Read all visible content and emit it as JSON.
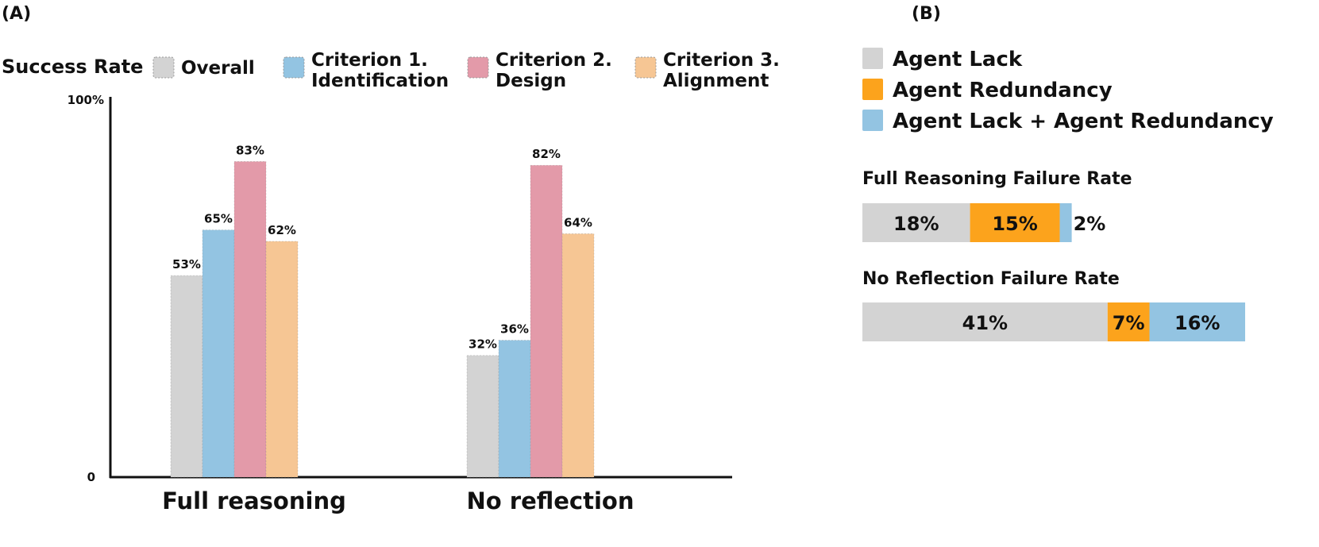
{
  "panel_a": {
    "label": "(A)",
    "legend_title": "Success Rate",
    "legend": [
      {
        "lines": [
          "Overall"
        ],
        "color": "#d3d3d3"
      },
      {
        "lines": [
          "Criterion 1.",
          "Identification"
        ],
        "color": "#93c4e2"
      },
      {
        "lines": [
          "Criterion 2.",
          "Design"
        ],
        "color": "#e39aa9"
      },
      {
        "lines": [
          "Criterion 3.",
          "Alignment"
        ],
        "color": "#f6c694"
      }
    ]
  },
  "panel_b": {
    "label": "(B)",
    "legend": [
      {
        "label": "Agent Lack",
        "color": "#d3d3d3"
      },
      {
        "label": "Agent Redundancy",
        "color": "#fca31c"
      },
      {
        "label": "Agent Lack + Agent Redundancy",
        "color": "#93c4e2"
      }
    ]
  },
  "chart_data": [
    {
      "type": "bar",
      "categories": [
        "Full reasoning",
        "No reflection"
      ],
      "ytick_labels": [
        "0",
        "100%"
      ],
      "ylim": [
        0,
        100
      ],
      "series": [
        {
          "name": "Overall",
          "values": [
            53,
            32
          ],
          "labels": [
            "53%",
            "32%"
          ],
          "color": "#d3d3d3"
        },
        {
          "name": "Criterion 1. Identification",
          "values": [
            65,
            36
          ],
          "labels": [
            "65%",
            "36%"
          ],
          "color": "#93c4e2"
        },
        {
          "name": "Criterion 2. Design",
          "values": [
            83,
            82
          ],
          "labels": [
            "83%",
            "82%"
          ],
          "color": "#e39aa9"
        },
        {
          "name": "Criterion 3. Alignment",
          "values": [
            62,
            64
          ],
          "labels": [
            "62%",
            "64%"
          ],
          "color": "#f6c694"
        }
      ],
      "legend_position": "top"
    },
    {
      "type": "bar",
      "orientation": "horizontal-stacked",
      "bars": [
        {
          "title": "Full Reasoning Failure Rate",
          "segments": [
            {
              "name": "Agent Lack",
              "value": 18,
              "label": "18%"
            },
            {
              "name": "Agent Redundancy",
              "value": 15,
              "label": "15%"
            },
            {
              "name": "Agent Lack + Agent Redundancy",
              "value": 2,
              "label": "2%"
            }
          ]
        },
        {
          "title": "No Reflection Failure Rate",
          "segments": [
            {
              "name": "Agent Lack",
              "value": 41,
              "label": "41%"
            },
            {
              "name": "Agent Redundancy",
              "value": 7,
              "label": "7%"
            },
            {
              "name": "Agent Lack + Agent Redundancy",
              "value": 16,
              "label": "16%"
            }
          ]
        }
      ],
      "legend_position": "top"
    }
  ]
}
